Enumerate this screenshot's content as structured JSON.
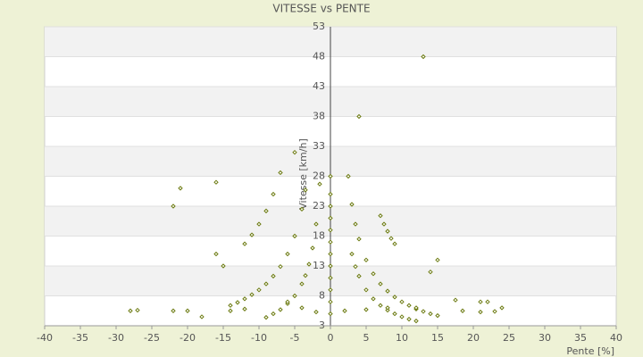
{
  "chart_data": {
    "type": "scatter",
    "title": "VITESSE vs PENTE",
    "x_label": "Pente [%]",
    "y_label": "Vitesse [km/h]",
    "color": "#6b7a10",
    "grid": true,
    "xlim": [
      -40,
      40
    ],
    "xticks": [
      -40,
      -35,
      -30,
      -25,
      -20,
      -15,
      -10,
      -5,
      0,
      5,
      10,
      15,
      20,
      25,
      30,
      35,
      40
    ],
    "ylim": [
      3,
      53
    ],
    "yticks": [
      3,
      8,
      13,
      18,
      23,
      28,
      33,
      38,
      43,
      48,
      53
    ],
    "x": [
      2.5,
      3,
      3.5,
      4,
      5,
      6,
      7,
      8,
      9,
      10,
      11,
      12,
      13,
      14,
      15,
      3,
      3.5,
      4,
      5,
      6,
      7,
      8,
      9,
      10,
      11,
      12,
      7,
      7.5,
      8,
      8.5,
      9,
      -1.5,
      -2,
      -2.5,
      -3,
      -3.5,
      -4,
      -5,
      -6,
      -7,
      -8,
      -9,
      -3.5,
      -4,
      -5,
      -6,
      -7,
      -8,
      -9,
      -10,
      -11,
      -12,
      -13,
      -14,
      -7,
      -8,
      -9,
      -10,
      -11,
      -12,
      0,
      0,
      0,
      0,
      0,
      0,
      0,
      0,
      0,
      0,
      0,
      0,
      13,
      4,
      -5,
      -22,
      -21,
      -16,
      -28,
      -27,
      -22,
      -20,
      21,
      22,
      24,
      21,
      23,
      17.5,
      18.5,
      -15,
      -16,
      -14,
      -12,
      -18,
      14,
      15,
      2,
      5,
      8,
      12,
      -2,
      -4,
      -6
    ],
    "y": [
      28,
      23.3,
      20,
      17.5,
      14,
      11.7,
      10,
      8.8,
      7.8,
      7,
      6.4,
      5.8,
      5.4,
      5,
      4.7,
      15,
      12.9,
      11.3,
      9,
      7.5,
      6.4,
      5.6,
      5,
      4.5,
      4.1,
      3.8,
      21.4,
      20,
      18.8,
      17.6,
      16.7,
      26.7,
      20,
      16,
      13.3,
      11.4,
      10,
      8,
      6.7,
      5.7,
      5,
      4.4,
      25.7,
      22.5,
      18,
      15,
      12.9,
      11.3,
      10,
      9,
      8.2,
      7.5,
      6.9,
      6.4,
      28.6,
      25,
      22.2,
      20,
      18.2,
      16.7,
      5,
      7,
      9,
      11,
      13,
      15,
      17,
      19,
      21,
      23,
      25,
      28,
      48,
      38,
      32,
      23,
      26,
      27,
      5.5,
      5.6,
      5.5,
      5.5,
      7,
      7,
      6,
      5.3,
      5.4,
      7.3,
      5.5,
      13,
      15,
      5.5,
      5.8,
      4.5,
      12,
      14,
      5.5,
      5.7,
      6,
      6,
      5.3,
      6,
      7
    ]
  }
}
